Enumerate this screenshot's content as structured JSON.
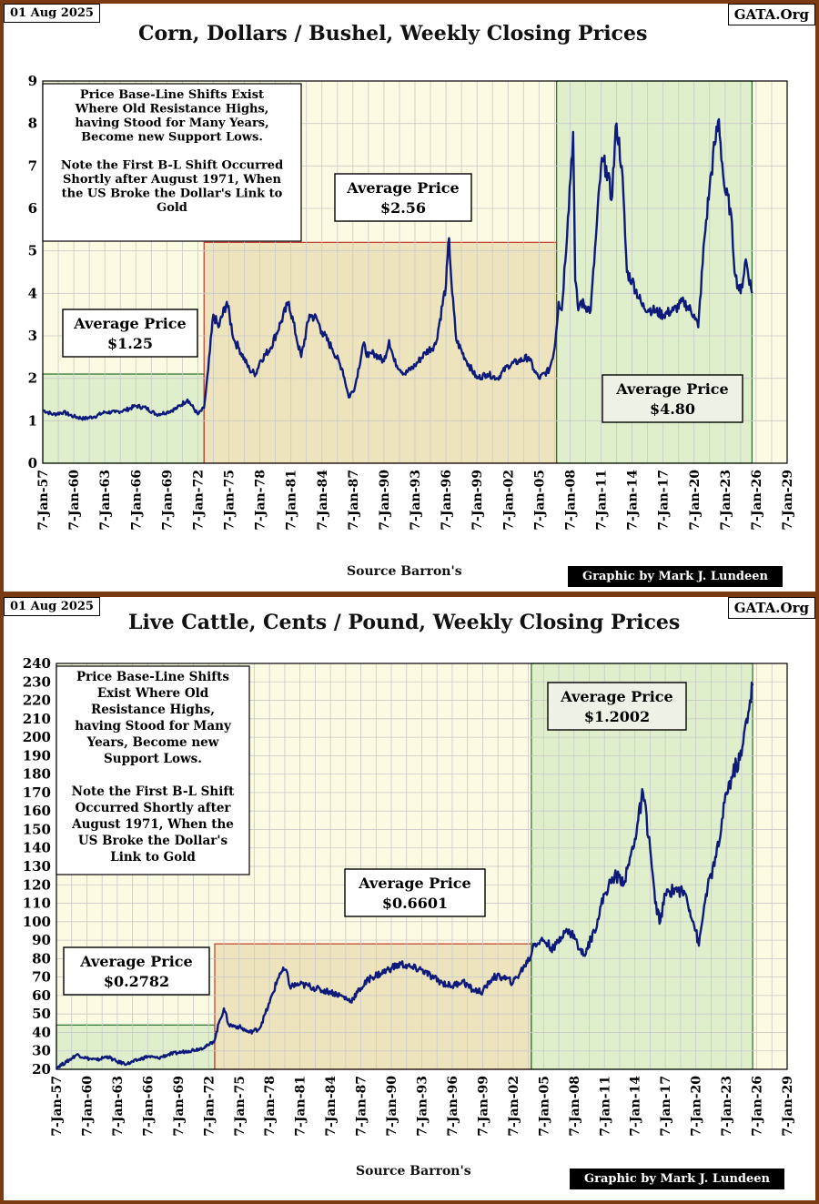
{
  "charts": [
    {
      "date": "01 Aug 2025",
      "site": "GATA.Org",
      "title": "Corn, Dollars / Bushel, Weekly Closing Prices",
      "source": "Source Barron's",
      "credit": "Graphic by Mark J. Lundeen",
      "note": [
        "Price Base-Line Shifts Exist",
        "Where Old Resistance Highs,",
        "having Stood for Many Years,",
        "Become new Support Lows.",
        "",
        "Note the First B-L Shift Occurred",
        "Shortly after August 1971, When",
        "the US Broke the Dollar's Link to",
        "Gold"
      ],
      "averages": [
        {
          "label": "Average Price",
          "value": "$1.25"
        },
        {
          "label": "Average Price",
          "value": "$2.56"
        },
        {
          "label": "Average Price",
          "value": "$4.80"
        }
      ]
    },
    {
      "date": "01 Aug 2025",
      "site": "GATA.Org",
      "title": "Live Cattle, Cents / Pound, Weekly Closing Prices",
      "source": "Source Barron's",
      "credit": "Graphic by Mark J. Lundeen",
      "note": [
        "Price Base-Line Shifts",
        "Exist Where Old",
        "Resistance Highs,",
        "having Stood for Many",
        "Years, Become new",
        "Support Lows.",
        "",
        "Note the First B-L Shift",
        "Occurred Shortly after",
        "August 1971, When the",
        "US Broke the Dollar's",
        "Link to Gold"
      ],
      "averages": [
        {
          "label": "Average Price",
          "value": "$0.2782"
        },
        {
          "label": "Average Price",
          "value": "$0.6601"
        },
        {
          "label": "Average Price",
          "value": "$1.2002"
        }
      ]
    }
  ],
  "chart_data": [
    {
      "type": "line",
      "title": "Corn, Dollars / Bushel, Weekly Closing Prices",
      "xlabel": "Source Barron's",
      "ylabel": "",
      "xlim": [
        1957,
        2029
      ],
      "ylim": [
        0,
        9
      ],
      "y_ticks": [
        0,
        1,
        2,
        3,
        4,
        5,
        6,
        7,
        8,
        9
      ],
      "x_ticks": [
        "7-Jan-57",
        "7-Jan-60",
        "7-Jan-63",
        "7-Jan-66",
        "7-Jan-69",
        "7-Jan-72",
        "7-Jan-75",
        "7-Jan-78",
        "7-Jan-81",
        "7-Jan-84",
        "7-Jan-87",
        "7-Jan-90",
        "7-Jan-93",
        "7-Jan-96",
        "7-Jan-99",
        "7-Jan-02",
        "7-Jan-05",
        "7-Jan-08",
        "7-Jan-11",
        "7-Jan-14",
        "7-Jan-17",
        "7-Jan-20",
        "7-Jan-23",
        "7-Jan-26",
        "7-Jan-29"
      ],
      "regions": [
        {
          "x": [
            1957,
            1972.6
          ],
          "y": [
            0,
            2.1
          ],
          "average": 1.25
        },
        {
          "x": [
            1972.6,
            2006.7
          ],
          "y": [
            0,
            5.2
          ],
          "average": 2.56
        },
        {
          "x": [
            2006.7,
            2025.6
          ],
          "y": [
            0,
            9
          ],
          "average": 4.8
        }
      ],
      "series": [
        {
          "name": "Corn",
          "x": [
            1957,
            1958,
            1959,
            1960,
            1961,
            1962,
            1963,
            1964,
            1965,
            1966,
            1967,
            1968,
            1969,
            1970,
            1971,
            1972,
            1972.6,
            1973,
            1973.5,
            1974,
            1974.8,
            1975.5,
            1976,
            1977,
            1977.6,
            1978,
            1979,
            1980,
            1980.8,
            1981.5,
            1982,
            1982.8,
            1983.5,
            1984,
            1985,
            1986,
            1986.6,
            1987.2,
            1988,
            1988.5,
            1989,
            1990,
            1990.5,
            1991,
            1992,
            1993,
            1994,
            1995,
            1996,
            1996.3,
            1996.6,
            1997,
            1998,
            1999,
            2000,
            2001,
            2002,
            2003,
            2004,
            2004.5,
            2005,
            2006,
            2006.5,
            2006.9,
            2007.2,
            2007.8,
            2008.3,
            2008.5,
            2008.8,
            2009,
            2010,
            2010.5,
            2011,
            2011.5,
            2012,
            2012.5,
            2013,
            2013.5,
            2014,
            2015,
            2016,
            2017,
            2018,
            2019,
            2020,
            2020.4,
            2021,
            2021.5,
            2022,
            2022.4,
            2022.8,
            2023,
            2023.5,
            2024,
            2024.5,
            2025,
            2025.6
          ],
          "values": [
            1.25,
            1.15,
            1.2,
            1.1,
            1.05,
            1.1,
            1.2,
            1.2,
            1.25,
            1.35,
            1.3,
            1.15,
            1.2,
            1.3,
            1.5,
            1.15,
            1.3,
            2.2,
            3.5,
            3.2,
            3.8,
            2.9,
            2.7,
            2.2,
            2.1,
            2.4,
            2.7,
            3.3,
            3.8,
            3.0,
            2.5,
            3.5,
            3.4,
            3.1,
            2.7,
            2.2,
            1.55,
            1.8,
            2.8,
            2.5,
            2.6,
            2.4,
            2.9,
            2.4,
            2.1,
            2.3,
            2.6,
            2.8,
            4.2,
            5.3,
            4.0,
            2.9,
            2.4,
            2.0,
            2.1,
            2.0,
            2.3,
            2.4,
            2.5,
            2.2,
            2.0,
            2.2,
            2.7,
            3.8,
            3.6,
            5.8,
            7.8,
            4.3,
            3.6,
            3.8,
            3.6,
            5.3,
            7.0,
            7.0,
            6.2,
            8.0,
            7.0,
            4.5,
            4.3,
            3.7,
            3.6,
            3.5,
            3.6,
            3.8,
            3.5,
            3.2,
            5.3,
            6.5,
            7.5,
            8.1,
            6.8,
            6.4,
            6.0,
            4.4,
            4.0,
            4.8,
            4.0
          ]
        }
      ]
    },
    {
      "type": "line",
      "title": "Live Cattle, Cents / Pound, Weekly Closing Prices",
      "xlabel": "Source Barron's",
      "ylabel": "",
      "xlim": [
        1957,
        2029
      ],
      "ylim": [
        20,
        240
      ],
      "y_ticks": [
        20,
        30,
        40,
        50,
        60,
        70,
        80,
        90,
        100,
        110,
        120,
        130,
        140,
        150,
        160,
        170,
        180,
        190,
        200,
        210,
        220,
        230,
        240
      ],
      "x_ticks": [
        "7-Jan-57",
        "7-Jan-60",
        "7-Jan-63",
        "7-Jan-66",
        "7-Jan-69",
        "7-Jan-72",
        "7-Jan-75",
        "7-Jan-78",
        "7-Jan-81",
        "7-Jan-84",
        "7-Jan-87",
        "7-Jan-90",
        "7-Jan-93",
        "7-Jan-96",
        "7-Jan-99",
        "7-Jan-02",
        "7-Jan-05",
        "7-Jan-08",
        "7-Jan-11",
        "7-Jan-14",
        "7-Jan-17",
        "7-Jan-20",
        "7-Jan-23",
        "7-Jan-26",
        "7-Jan-29"
      ],
      "regions": [
        {
          "x": [
            1957,
            1972.6
          ],
          "y": [
            20,
            44
          ],
          "average": 27.82
        },
        {
          "x": [
            1972.6,
            2003.8
          ],
          "y": [
            20,
            88
          ],
          "average": 66.01
        },
        {
          "x": [
            2003.8,
            2025.6
          ],
          "y": [
            20,
            240
          ],
          "average": 120.02
        }
      ],
      "series": [
        {
          "name": "Live Cattle",
          "x": [
            1957,
            1958,
            1959,
            1960,
            1961,
            1962,
            1963,
            1964,
            1965,
            1966,
            1967,
            1968,
            1969,
            1970,
            1971,
            1972,
            1972.6,
            1973,
            1973.5,
            1974,
            1975,
            1976,
            1977,
            1978,
            1979,
            1979.6,
            1980,
            1981,
            1982,
            1983,
            1984,
            1985,
            1986,
            1987,
            1988,
            1989,
            1990,
            1991,
            1992,
            1993,
            1994,
            1995,
            1996,
            1997,
            1998,
            1999,
            2000,
            2001,
            2002,
            2003,
            2003.8,
            2004,
            2005,
            2006,
            2007,
            2008,
            2008.5,
            2009,
            2010,
            2011,
            2012,
            2013,
            2014,
            2014.8,
            2015.5,
            2016,
            2016.5,
            2017,
            2018,
            2019,
            2020,
            2020.3,
            2021,
            2022,
            2022.5,
            2023,
            2024,
            2024.5,
            2025,
            2025.6
          ],
          "values": [
            21,
            24,
            28,
            26,
            25,
            27,
            24,
            23,
            25,
            27,
            26,
            28,
            29,
            30,
            31,
            33,
            36,
            45,
            53,
            44,
            43,
            40,
            42,
            56,
            72,
            74,
            65,
            66,
            65,
            63,
            62,
            60,
            57,
            64,
            70,
            72,
            75,
            77,
            75,
            74,
            70,
            67,
            65,
            68,
            63,
            62,
            70,
            70,
            67,
            75,
            82,
            88,
            90,
            85,
            95,
            93,
            85,
            82,
            95,
            115,
            125,
            122,
            145,
            170,
            140,
            110,
            100,
            115,
            118,
            115,
            95,
            87,
            115,
            135,
            150,
            170,
            185,
            190,
            210,
            228
          ]
        }
      ]
    }
  ]
}
